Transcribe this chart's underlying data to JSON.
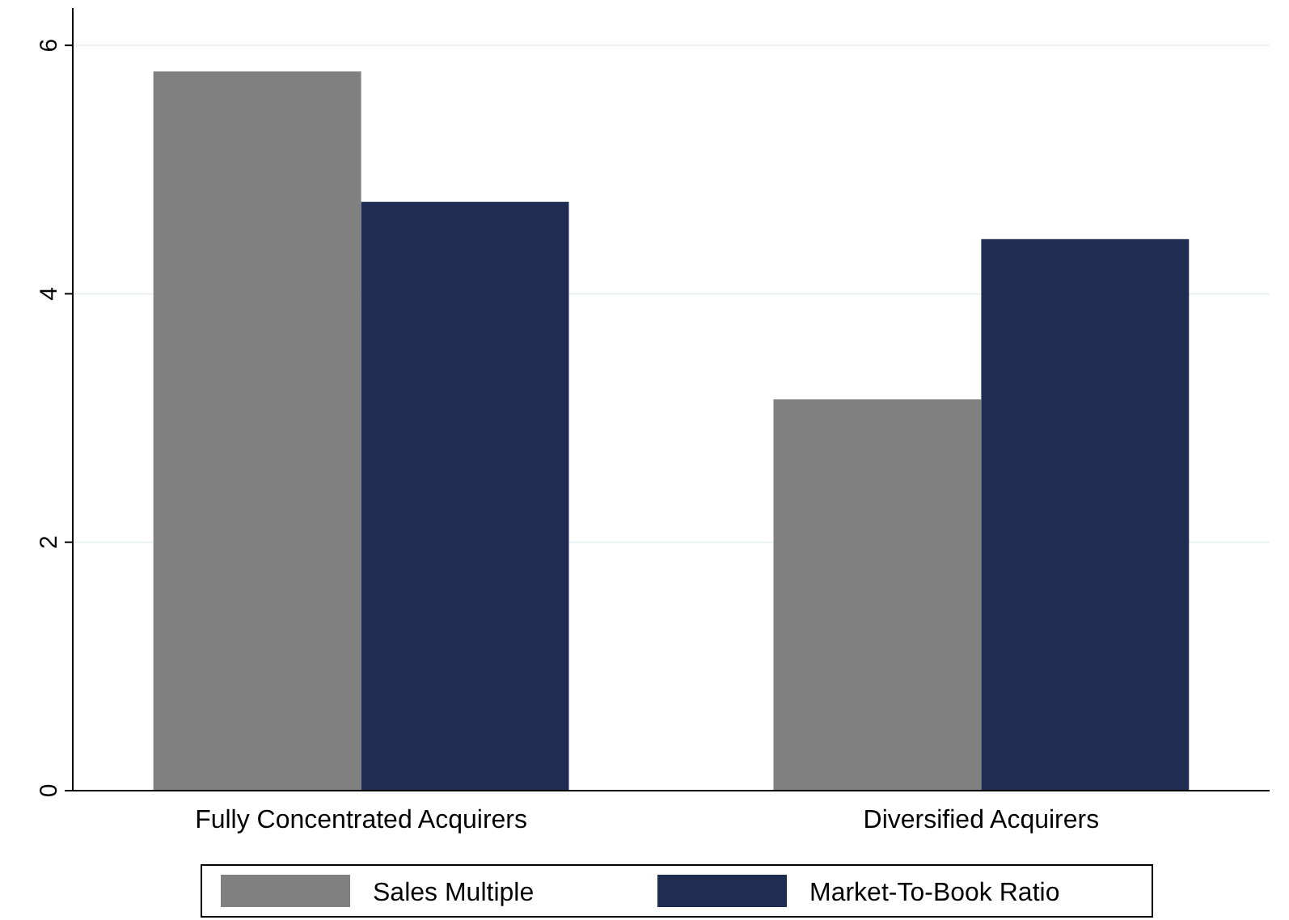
{
  "chart_data": {
    "type": "bar",
    "categories": [
      "Fully Concentrated Acquirers",
      "Diversified Acquirers"
    ],
    "series": [
      {
        "name": "Sales Multiple",
        "color": "#808080",
        "values": [
          5.79,
          3.15
        ]
      },
      {
        "name": "Market-To-Book Ratio",
        "color": "#1f2d52",
        "values": [
          4.74,
          4.44
        ]
      }
    ],
    "ylim": [
      0,
      6.3
    ],
    "yticks": [
      0,
      2,
      4,
      6
    ],
    "grid": "y",
    "legend": "bottom"
  }
}
